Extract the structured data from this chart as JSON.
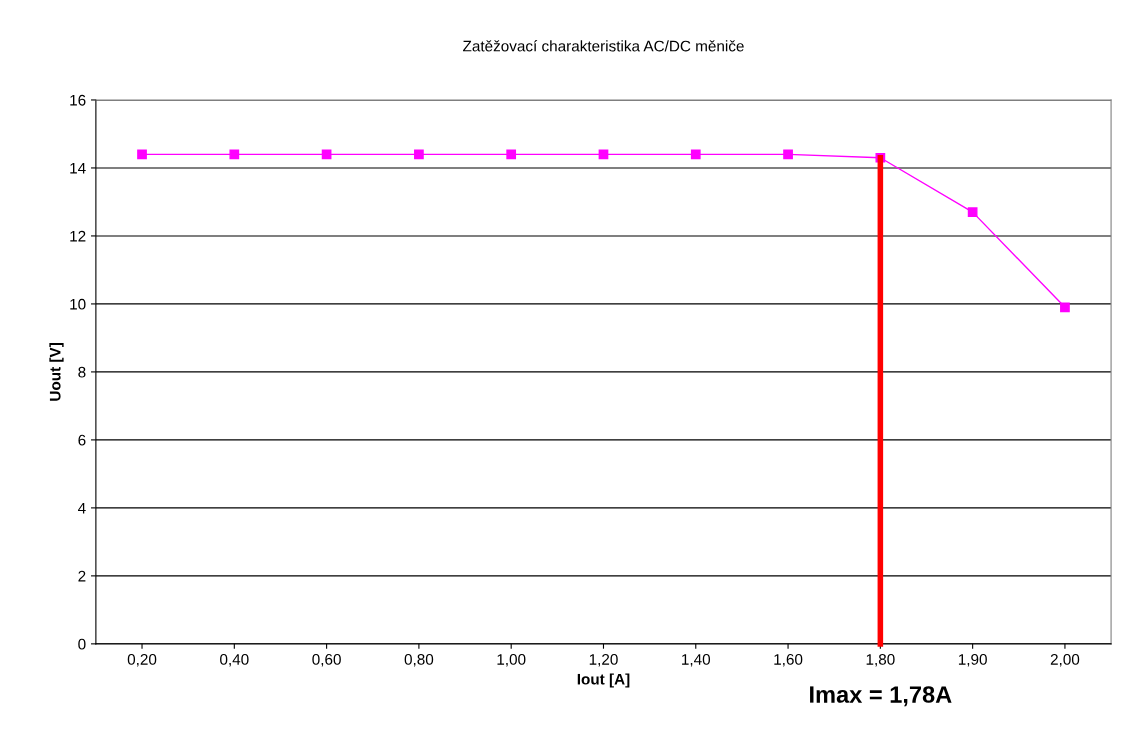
{
  "chart_data": {
    "type": "line",
    "title": "Zatěžovací charakteristika AC/DC měniče",
    "xlabel": "Iout [A]",
    "ylabel": "Uout [V]",
    "categories": [
      "0,20",
      "0,40",
      "0,60",
      "0,80",
      "1,00",
      "1,20",
      "1,40",
      "1,60",
      "1,80",
      "1,90",
      "2,00"
    ],
    "series": [
      {
        "color": "#ff00ff",
        "values": [
          14.4,
          14.4,
          14.4,
          14.4,
          14.4,
          14.4,
          14.4,
          14.4,
          14.3,
          12.7,
          9.9
        ]
      }
    ],
    "ylim": [
      0,
      16
    ],
    "yticks": [
      0,
      2,
      4,
      6,
      8,
      10,
      12,
      14,
      16
    ],
    "grid": "y",
    "marker": "square",
    "line_style": "solid",
    "ref_lines": [
      {
        "axis": "x",
        "value": "1,80",
        "label": "Imax = 1,78A",
        "color": "#ff0000"
      }
    ]
  }
}
